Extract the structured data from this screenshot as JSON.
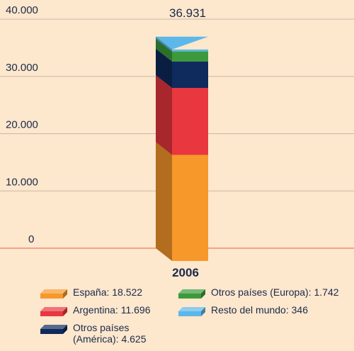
{
  "chart_data": {
    "type": "stacked-bar-3d",
    "categories": [
      "2006"
    ],
    "series": [
      {
        "name": "España: 18.522",
        "color": "#f7982a",
        "values": [
          18522
        ]
      },
      {
        "name": "Argentina: 11.696",
        "color": "#e8373f",
        "values": [
          11696
        ]
      },
      {
        "name": "Otros países (América): 4.625",
        "color": "#0f2a5c",
        "values": [
          4625
        ]
      },
      {
        "name": "Otros países (Europa): 1.742",
        "color": "#3c9a3c",
        "values": [
          1742
        ]
      },
      {
        "name": "Resto del mundo: 346",
        "color": "#5bb8e8",
        "values": [
          346
        ]
      }
    ],
    "total": [
      36931
    ],
    "total_label": [
      "36.931"
    ],
    "ylim": [
      0,
      40000
    ],
    "yticks": [
      0,
      {
        "value": 10000,
        "label": "10.000"
      },
      {
        "value": 20000,
        "label": "20.000"
      },
      {
        "value": 30000,
        "label": "30.000"
      },
      {
        "value": 40000,
        "label": "40.000"
      }
    ],
    "grid": true
  }
}
